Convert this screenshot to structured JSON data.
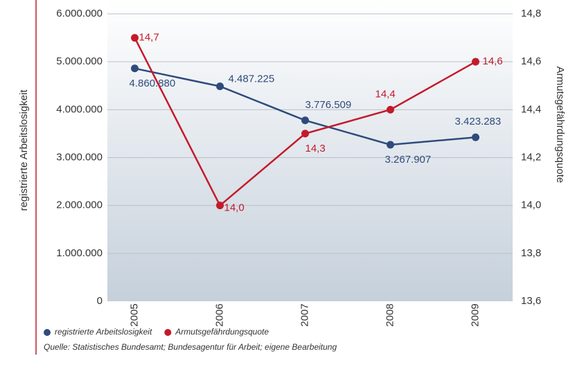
{
  "chart_data": {
    "type": "line",
    "ylabel": "registrierte Arbeitslosigkeit",
    "y2label": "Armutsgefährdungsquote",
    "source": "Quelle: Statistisches Bundesamt; Bundesagentur für Arbeit; eigene Bearbeitung",
    "categories": [
      "2005",
      "2006",
      "2007",
      "2008",
      "2009"
    ],
    "series": [
      {
        "name": "registrierte Arbeitslosigkeit",
        "color": "#2f4b7c",
        "axis": "y",
        "values": [
          4860880,
          4487225,
          3776509,
          3267907,
          3423283
        ],
        "value_labels": [
          "4.860.880",
          "4.487.225",
          "3.776.509",
          "3.267.907",
          "3.423.283"
        ]
      },
      {
        "name": "Armutsgefährdungsquote",
        "color": "#c41a2b",
        "axis": "y2",
        "values": [
          14.7,
          14.0,
          14.3,
          14.4,
          14.6
        ],
        "value_labels": [
          "14,7",
          "14,0",
          "14,3",
          "14,4",
          "14,6"
        ]
      }
    ],
    "ylim": [
      0,
      6000000
    ],
    "yticks": [
      0,
      {
        "value": 1000000,
        "label": "1.000.000"
      },
      {
        "value": 2000000,
        "label": "2.000.000"
      },
      {
        "value": 3000000,
        "label": "3.000.000"
      },
      {
        "value": 4000000,
        "label": "4.000.000"
      },
      {
        "value": 5000000,
        "label": "5.000.000"
      },
      {
        "value": 6000000,
        "label": "6.000.000"
      }
    ],
    "y2lim": [
      13.6,
      14.8
    ],
    "y2ticks": [
      {
        "value": 13.6,
        "label": "13,6"
      },
      {
        "value": 13.8,
        "label": "13,8"
      },
      {
        "value": 14.0,
        "label": "14,0"
      },
      {
        "value": 14.2,
        "label": "14,2"
      },
      {
        "value": 14.4,
        "label": "14,4"
      },
      {
        "value": 14.6,
        "label": "14,6"
      },
      {
        "value": 14.8,
        "label": "14,8"
      }
    ],
    "grid": true
  }
}
